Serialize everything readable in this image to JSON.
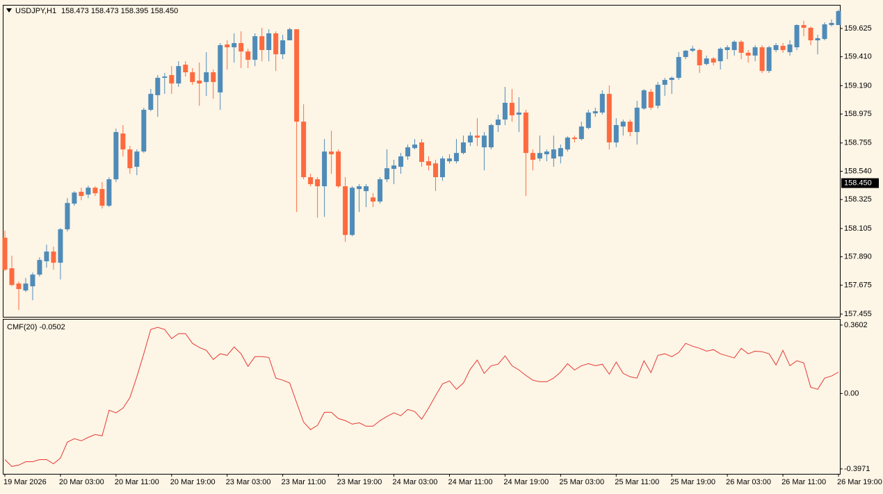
{
  "chart_data": [
    {
      "type": "candlestick",
      "title": "USDJPY,H1",
      "subtitle": "158.473 158.473 158.395 158.450",
      "up_color": "#4f8bb8",
      "down_color": "#fe6a3f",
      "categories": [
        "19 Mar 2026",
        null,
        null,
        null,
        null,
        null,
        null,
        null,
        "20 Mar 03:00",
        null,
        null,
        null,
        null,
        null,
        null,
        null,
        "20 Mar 11:00",
        null,
        null,
        null,
        null,
        null,
        null,
        null,
        "20 Mar 19:00",
        null,
        null,
        null,
        null,
        null,
        null,
        null,
        "23 Mar 03:00",
        null,
        null,
        null,
        null,
        null,
        null,
        null,
        "23 Mar 11:00",
        null,
        null,
        null,
        null,
        null,
        null,
        null,
        "23 Mar 19:00",
        null,
        null,
        null,
        null,
        null,
        null,
        null,
        "24 Mar 03:00",
        null,
        null,
        null,
        null,
        null,
        null,
        null,
        "24 Mar 11:00",
        null,
        null,
        null,
        null,
        null,
        null,
        null,
        "24 Mar 19:00",
        null,
        null,
        null,
        null,
        null,
        null,
        null,
        "25 Mar 03:00",
        null,
        null,
        null,
        null,
        null,
        null,
        null,
        "25 Mar 11:00",
        null,
        null,
        null,
        null,
        null,
        null,
        null,
        "25 Mar 19:00",
        null,
        null,
        null,
        null,
        null,
        null,
        null,
        "26 Mar 03:00",
        null,
        null,
        null,
        null,
        null,
        null,
        null,
        "26 Mar 11:00",
        null,
        null,
        null,
        null,
        null,
        null,
        null,
        "26 Mar 19:00"
      ],
      "open": [
        158.035,
        157.803,
        157.687,
        157.634,
        157.666,
        157.755,
        157.856,
        157.93,
        157.845,
        158.099,
        158.294,
        158.384,
        158.363,
        158.415,
        158.405,
        158.278,
        158.479,
        158.827,
        158.706,
        158.574,
        158.69,
        159.007,
        159.118,
        159.25,
        159.271,
        159.207,
        159.35,
        159.292,
        159.229,
        159.218,
        159.292,
        159.139,
        159.503,
        159.482,
        159.514,
        159.45,
        159.387,
        159.566,
        159.461,
        159.588,
        159.429,
        159.535,
        159.619,
        158.917,
        158.495,
        158.479,
        158.426,
        158.69,
        158.69,
        158.426,
        158.056,
        158.405,
        158.389,
        158.341,
        158.31,
        158.479,
        158.558,
        158.574,
        158.653,
        158.716,
        158.759,
        158.616,
        158.6,
        158.495,
        158.616,
        158.616,
        158.679,
        158.759,
        158.811,
        158.722,
        158.722,
        158.891,
        158.933,
        159.06,
        158.97,
        158.986,
        158.679,
        158.637,
        158.669,
        158.637,
        158.653,
        158.706,
        158.796,
        158.785,
        158.869,
        158.98,
        158.986,
        159.128,
        158.759,
        158.88,
        158.917,
        158.838,
        159.017,
        159.144,
        159.038,
        159.197,
        159.234,
        159.25,
        159.408,
        159.456,
        159.461,
        159.355,
        159.397,
        159.376,
        159.461,
        159.461,
        159.524,
        159.44,
        159.419,
        159.482,
        159.302,
        159.461,
        159.493,
        159.445,
        159.482,
        159.651,
        159.63,
        159.535,
        159.545,
        159.651,
        159.651
      ],
      "high": [
        158.088,
        157.898,
        157.703,
        157.729,
        157.771,
        157.887,
        157.982,
        157.967,
        158.109,
        158.336,
        158.389,
        158.415,
        158.431,
        158.426,
        158.458,
        158.495,
        158.864,
        158.891,
        158.732,
        158.706,
        159.023,
        159.165,
        159.271,
        159.287,
        159.339,
        159.376,
        159.376,
        159.324,
        159.366,
        159.445,
        159.313,
        159.514,
        159.535,
        159.588,
        159.603,
        159.471,
        159.588,
        159.63,
        159.619,
        159.603,
        159.577,
        159.63,
        159.619,
        159.049,
        158.521,
        158.495,
        158.785,
        158.848,
        158.706,
        158.495,
        158.426,
        158.442,
        158.442,
        158.373,
        158.495,
        158.706,
        158.627,
        158.679,
        158.743,
        158.785,
        158.785,
        158.653,
        158.627,
        158.653,
        158.669,
        158.785,
        158.811,
        158.838,
        158.943,
        158.838,
        158.901,
        158.97,
        159.181,
        159.165,
        159.102,
        159.007,
        158.706,
        158.811,
        158.706,
        158.811,
        158.743,
        158.806,
        158.811,
        158.917,
        159.007,
        159.023,
        159.155,
        159.192,
        158.943,
        158.933,
        158.933,
        159.075,
        159.165,
        159.165,
        159.218,
        159.25,
        159.26,
        159.445,
        159.461,
        159.493,
        159.471,
        159.419,
        159.408,
        159.482,
        159.498,
        159.535,
        159.535,
        159.461,
        159.498,
        159.498,
        159.493,
        159.514,
        159.514,
        159.535,
        159.656,
        159.683,
        159.64,
        159.577,
        159.672,
        159.693,
        159.767
      ],
      "low": [
        157.782,
        157.666,
        157.486,
        157.623,
        157.56,
        157.74,
        157.808,
        157.792,
        157.718,
        158.083,
        158.278,
        158.32,
        158.336,
        158.352,
        158.257,
        158.268,
        158.458,
        158.653,
        158.521,
        158.51,
        158.679,
        158.996,
        158.954,
        159.128,
        159.128,
        159.181,
        159.26,
        159.197,
        159.038,
        159.112,
        159.091,
        159.007,
        159.313,
        159.366,
        159.324,
        159.324,
        159.339,
        159.376,
        159.376,
        159.302,
        159.392,
        159.535,
        158.231,
        158.479,
        158.426,
        158.188,
        158.194,
        158.521,
        158.415,
        158.004,
        158.046,
        158.231,
        158.268,
        158.268,
        158.294,
        158.458,
        158.442,
        158.521,
        158.627,
        158.706,
        158.574,
        158.547,
        158.389,
        158.468,
        158.6,
        158.6,
        158.669,
        158.732,
        158.732,
        158.547,
        158.706,
        158.838,
        158.891,
        158.917,
        158.838,
        158.352,
        158.547,
        158.616,
        158.616,
        158.574,
        158.6,
        158.69,
        158.759,
        158.774,
        158.859,
        158.954,
        158.97,
        158.706,
        158.722,
        158.811,
        158.806,
        158.743,
        159.007,
        159.007,
        159.017,
        159.112,
        159.128,
        159.234,
        159.392,
        159.445,
        159.287,
        159.345,
        159.345,
        159.313,
        159.392,
        159.419,
        159.392,
        159.366,
        159.376,
        159.287,
        159.287,
        159.445,
        159.44,
        159.419,
        159.461,
        159.566,
        159.498,
        159.429,
        159.535,
        159.64,
        159.651
      ],
      "close": [
        157.792,
        157.676,
        157.645,
        157.687,
        157.755,
        157.866,
        157.93,
        157.845,
        158.099,
        158.299,
        158.378,
        158.352,
        158.415,
        158.373,
        158.278,
        158.479,
        158.838,
        158.706,
        158.563,
        158.69,
        159.007,
        159.128,
        159.25,
        159.26,
        159.207,
        159.339,
        159.292,
        159.218,
        159.207,
        159.292,
        159.218,
        159.498,
        159.482,
        159.514,
        159.45,
        159.387,
        159.566,
        159.461,
        159.588,
        159.429,
        159.535,
        159.619,
        158.917,
        158.495,
        158.442,
        158.426,
        158.69,
        158.669,
        158.426,
        158.056,
        158.415,
        158.426,
        158.426,
        158.31,
        158.479,
        158.563,
        158.584,
        158.653,
        158.722,
        158.743,
        158.611,
        158.584,
        158.495,
        158.637,
        158.637,
        158.679,
        158.759,
        158.811,
        158.796,
        158.811,
        158.891,
        158.933,
        159.06,
        158.965,
        158.986,
        158.679,
        158.627,
        158.679,
        158.69,
        158.706,
        158.716,
        158.796,
        158.785,
        158.88,
        158.986,
        158.996,
        159.128,
        158.759,
        158.891,
        158.917,
        158.838,
        159.023,
        159.155,
        159.023,
        159.197,
        159.234,
        159.25,
        159.408,
        159.456,
        159.471,
        159.345,
        159.397,
        159.366,
        159.471,
        159.482,
        159.524,
        159.44,
        159.419,
        159.482,
        159.302,
        159.482,
        159.498,
        159.461,
        159.503,
        159.651,
        159.63,
        159.535,
        159.551,
        159.656,
        159.667,
        159.757
      ],
      "ylim": [
        157.434,
        159.799
      ],
      "yticks": [
        159.625,
        {
          "value": 159.41,
          "label": "159.410"
        },
        {
          "value": 159.19,
          "label": "159.190"
        },
        158.975,
        158.755,
        {
          "value": 158.54,
          "label": "158.540"
        },
        158.325,
        158.105,
        {
          "value": 157.89,
          "label": "157.890"
        },
        157.675,
        157.455
      ],
      "last_price": {
        "value": 158.45,
        "label": "158.450"
      }
    },
    {
      "type": "line",
      "title": "CMF(20) -0.0502",
      "color": "#e53935",
      "values": [
        -0.348,
        -0.384,
        -0.377,
        -0.359,
        -0.359,
        -0.348,
        -0.348,
        -0.37,
        -0.34,
        -0.256,
        -0.238,
        -0.249,
        -0.231,
        -0.216,
        -0.223,
        -0.088,
        -0.102,
        -0.077,
        -0.022,
        0.088,
        0.209,
        0.337,
        0.348,
        0.337,
        0.289,
        0.315,
        0.315,
        0.264,
        0.242,
        0.227,
        0.179,
        0.209,
        0.201,
        0.245,
        0.209,
        0.143,
        0.194,
        0.194,
        0.19,
        0.081,
        0.07,
        0.055,
        -0.048,
        -0.15,
        -0.19,
        -0.168,
        -0.099,
        -0.099,
        -0.132,
        -0.143,
        -0.161,
        -0.154,
        -0.172,
        -0.172,
        -0.143,
        -0.121,
        -0.102,
        -0.117,
        -0.084,
        -0.095,
        -0.135,
        -0.077,
        -0.011,
        0.051,
        0.066,
        0.022,
        0.055,
        0.128,
        0.176,
        0.106,
        0.146,
        0.154,
        0.198,
        0.146,
        0.124,
        0.095,
        0.07,
        0.062,
        0.062,
        0.081,
        0.113,
        0.157,
        0.124,
        0.146,
        0.157,
        0.146,
        0.154,
        0.102,
        0.165,
        0.106,
        0.088,
        0.081,
        0.172,
        0.11,
        0.201,
        0.209,
        0.194,
        0.216,
        0.264,
        0.249,
        0.238,
        0.223,
        0.231,
        0.209,
        0.198,
        0.187,
        0.238,
        0.209,
        0.223,
        0.22,
        0.209,
        0.15,
        0.227,
        0.146,
        0.172,
        0.161,
        0.033,
        0.022,
        0.081,
        0.092,
        0.113
      ],
      "ylim": [
        -0.423,
        0.389
      ],
      "yticks": [
        0.3602,
        {
          "value": 0,
          "label": "0.00"
        },
        -0.3971
      ]
    }
  ]
}
